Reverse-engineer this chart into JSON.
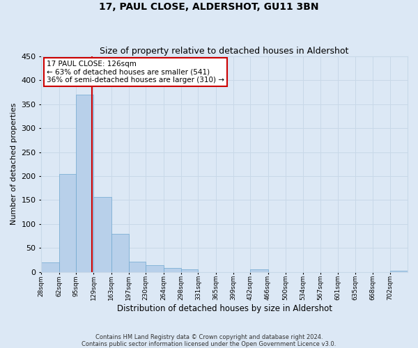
{
  "title": "17, PAUL CLOSE, ALDERSHOT, GU11 3BN",
  "subtitle": "Size of property relative to detached houses in Aldershot",
  "xlabel": "Distribution of detached houses by size in Aldershot",
  "ylabel": "Number of detached properties",
  "bin_labels": [
    "28sqm",
    "62sqm",
    "95sqm",
    "129sqm",
    "163sqm",
    "197sqm",
    "230sqm",
    "264sqm",
    "298sqm",
    "331sqm",
    "365sqm",
    "399sqm",
    "432sqm",
    "466sqm",
    "500sqm",
    "534sqm",
    "567sqm",
    "601sqm",
    "635sqm",
    "668sqm",
    "702sqm"
  ],
  "bar_values": [
    20,
    204,
    370,
    156,
    79,
    22,
    14,
    8,
    5,
    0,
    0,
    0,
    5,
    0,
    0,
    0,
    0,
    0,
    0,
    0,
    3
  ],
  "bar_color": "#b8d0ea",
  "bar_edge_color": "#6fa8d0",
  "property_line_x": 126,
  "property_line_label": "17 PAUL CLOSE: 126sqm",
  "annotation_line1": "← 63% of detached houses are smaller (541)",
  "annotation_line2": "36% of semi-detached houses are larger (310) →",
  "annotation_box_color": "#ffffff",
  "annotation_box_edge": "#cc0000",
  "vline_color": "#cc0000",
  "ylim": [
    0,
    450
  ],
  "yticks": [
    0,
    50,
    100,
    150,
    200,
    250,
    300,
    350,
    400,
    450
  ],
  "grid_color": "#c8d8e8",
  "bg_color": "#dce8f5",
  "footer_line1": "Contains HM Land Registry data © Crown copyright and database right 2024.",
  "footer_line2": "Contains public sector information licensed under the Open Government Licence v3.0.",
  "title_fontsize": 10,
  "subtitle_fontsize": 9
}
